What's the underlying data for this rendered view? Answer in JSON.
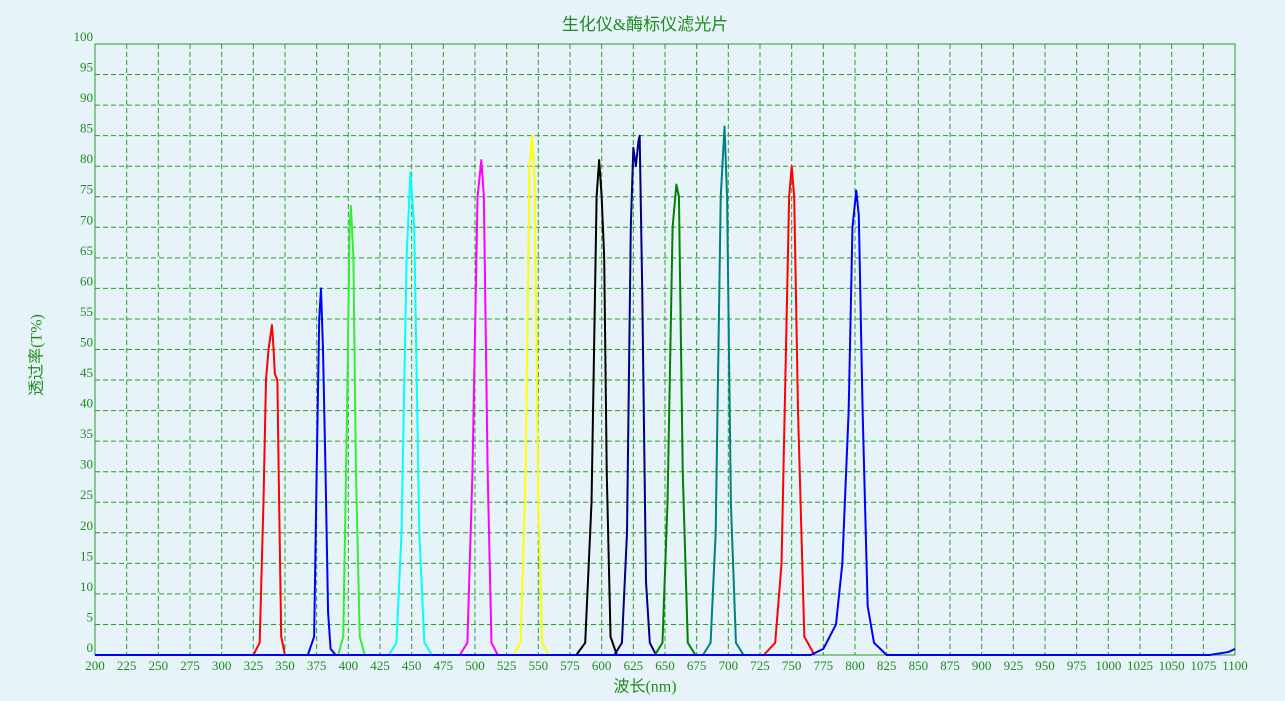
{
  "chart_data": {
    "type": "line",
    "title": "生化仪&酶标仪滤光片",
    "xlabel": "波长(nm)",
    "ylabel": "透过率(T%)",
    "xlim": [
      200,
      1100
    ],
    "ylim": [
      0,
      100
    ],
    "xticks": [
      200,
      225,
      250,
      275,
      300,
      325,
      350,
      375,
      400,
      425,
      450,
      475,
      500,
      525,
      550,
      575,
      600,
      625,
      650,
      675,
      700,
      725,
      750,
      775,
      800,
      825,
      850,
      875,
      900,
      925,
      950,
      975,
      1000,
      1025,
      1050,
      1075,
      1100
    ],
    "yticks": [
      0,
      5,
      10,
      15,
      20,
      25,
      30,
      35,
      40,
      45,
      50,
      55,
      60,
      65,
      70,
      75,
      80,
      85,
      90,
      95,
      100
    ],
    "grid": true,
    "series": [
      {
        "color": "#ff0000",
        "x": [
          325,
          330,
          333,
          335,
          337,
          339.7,
          341,
          342,
          344,
          345,
          347,
          350
        ],
        "values": [
          0,
          2,
          25,
          45,
          50,
          54,
          50,
          46,
          45,
          30,
          3,
          0
        ]
      },
      {
        "color": "#0000ff",
        "x": [
          368,
          373,
          375,
          377,
          378.4,
          380,
          382,
          384,
          386,
          390
        ],
        "values": [
          0,
          3,
          30,
          55,
          60,
          50,
          30,
          7,
          1,
          0
        ]
      },
      {
        "color": "#33ee33",
        "x": [
          392,
          396,
          399,
          401,
          402,
          404,
          406,
          409,
          413
        ],
        "values": [
          0,
          3,
          40,
          70,
          73.5,
          65,
          30,
          3,
          0
        ]
      },
      {
        "color": "#00ffff",
        "x": [
          432,
          438,
          442,
          446,
          449,
          452,
          456,
          460,
          466
        ],
        "values": [
          0,
          2,
          20,
          65,
          79,
          70,
          20,
          2,
          0
        ]
      },
      {
        "color": "#ff00ff",
        "x": [
          488,
          494,
          498,
          502,
          505,
          507,
          510,
          513,
          518
        ],
        "values": [
          0,
          2,
          30,
          75,
          81,
          75,
          30,
          2,
          0
        ]
      },
      {
        "color": "#ffff00",
        "x": [
          530,
          536,
          540,
          543,
          545,
          547,
          550,
          553,
          558
        ],
        "values": [
          0,
          2,
          30,
          80,
          85,
          78,
          25,
          2,
          0
        ]
      },
      {
        "color": "#000000",
        "x": [
          580,
          587,
          592,
          596,
          598,
          600,
          602,
          604,
          607,
          612
        ],
        "values": [
          0,
          2,
          25,
          75,
          81,
          75,
          65,
          30,
          3,
          0
        ]
      },
      {
        "color": "#000080",
        "x": [
          610,
          616,
          620,
          623,
          625,
          627,
          629,
          630,
          632,
          635,
          638,
          643
        ],
        "values": [
          0,
          2,
          20,
          70,
          83,
          80,
          84,
          85,
          60,
          12,
          2,
          0
        ]
      },
      {
        "color": "#008000",
        "x": [
          642,
          648,
          652,
          656,
          659,
          661,
          664,
          668,
          674
        ],
        "values": [
          0,
          2,
          25,
          70,
          77,
          75,
          30,
          2,
          0
        ]
      },
      {
        "color": "#008080",
        "x": [
          680,
          686,
          690,
          694,
          697,
          699,
          702,
          706,
          712
        ],
        "values": [
          0,
          2,
          20,
          75,
          86.5,
          75,
          25,
          2,
          0
        ]
      },
      {
        "color": "#ff0000",
        "x": [
          728,
          737,
          742,
          746,
          748,
          750,
          752,
          755,
          760,
          768
        ],
        "values": [
          0,
          2,
          15,
          55,
          75,
          80,
          75,
          40,
          3,
          0
        ]
      },
      {
        "color": "#0000ff",
        "x": [
          200,
          765,
          775,
          785,
          790,
          795,
          798,
          801,
          803,
          806,
          810,
          815,
          825,
          835,
          1080,
          1095,
          1100
        ],
        "values": [
          0,
          0,
          1,
          5,
          15,
          40,
          70,
          76,
          72,
          40,
          8,
          2,
          0,
          0,
          0,
          0.5,
          1
        ]
      }
    ]
  }
}
